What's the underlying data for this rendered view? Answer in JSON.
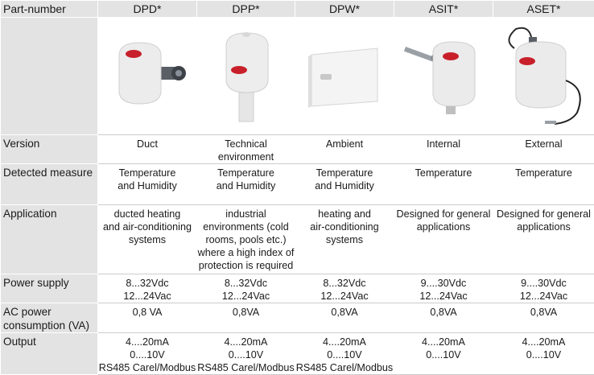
{
  "header": {
    "part_number_label": "Part-number",
    "products": [
      "DPD*",
      "DPP*",
      "DPW*",
      "ASIT*",
      "ASET*"
    ]
  },
  "images": {
    "dpd": "duct humidity and temperature sensor photo",
    "dpp": "technical environment sensor photo",
    "dpw": "ambient wall sensor photo",
    "asit": "internal probe sensor photo",
    "aset": "external probe sensor photo"
  },
  "rows": {
    "version": {
      "label": "Version",
      "cells": [
        [
          "Duct"
        ],
        [
          "Technical",
          "environment"
        ],
        [
          "Ambient"
        ],
        [
          "Internal"
        ],
        [
          "External"
        ]
      ]
    },
    "detected_measure": {
      "label": "Detected measure",
      "cells": [
        [
          "Temperature",
          "and Humidity"
        ],
        [
          "Temperature",
          "and Humidity"
        ],
        [
          "Temperature",
          "and Humidity"
        ],
        [
          "Temperature"
        ],
        [
          "Temperature"
        ]
      ]
    },
    "application": {
      "label": "Application",
      "cells": [
        [
          "ducted heating",
          "and air-conditioning",
          "systems"
        ],
        [
          "industrial",
          "environments (cold",
          "rooms, pools etc.)",
          "where a high index of",
          "protection is required"
        ],
        [
          "heating and",
          "air-conditioning",
          "systems"
        ],
        [
          "Designed for general",
          "applications"
        ],
        [
          "Designed for general",
          "applications"
        ]
      ]
    },
    "power_supply": {
      "label": "Power supply",
      "cells": [
        [
          "8...32Vdc",
          "12...24Vac"
        ],
        [
          "8...32Vdc",
          "12...24Vac"
        ],
        [
          "8...32Vdc",
          "12...24Vac"
        ],
        [
          "9....30Vdc",
          "12...24Vac"
        ],
        [
          "9....30Vdc",
          "12...24Vac"
        ]
      ]
    },
    "ac_power": {
      "label_line1": "AC power",
      "label_line2": "consumption (VA)",
      "cells": [
        [
          "0,8 VA"
        ],
        [
          "0,8VA"
        ],
        [
          "0,8VA"
        ],
        [
          "0,8VA"
        ],
        [
          "0,8VA"
        ]
      ]
    },
    "output": {
      "label": "Output",
      "cells": [
        [
          "4....20mA",
          "0....10V",
          "RS485 Carel/Modbus"
        ],
        [
          "4....20mA",
          "0....10V",
          "RS485 Carel/Modbus"
        ],
        [
          "4....20mA",
          "0....10V",
          "RS485 Carel/Modbus"
        ],
        [
          "4....20mA",
          "0....10V"
        ],
        [
          "4....20mA",
          "0....10V"
        ]
      ]
    }
  },
  "colors": {
    "label_bg": "#e3e3e3",
    "logo_red": "#c8202a"
  }
}
